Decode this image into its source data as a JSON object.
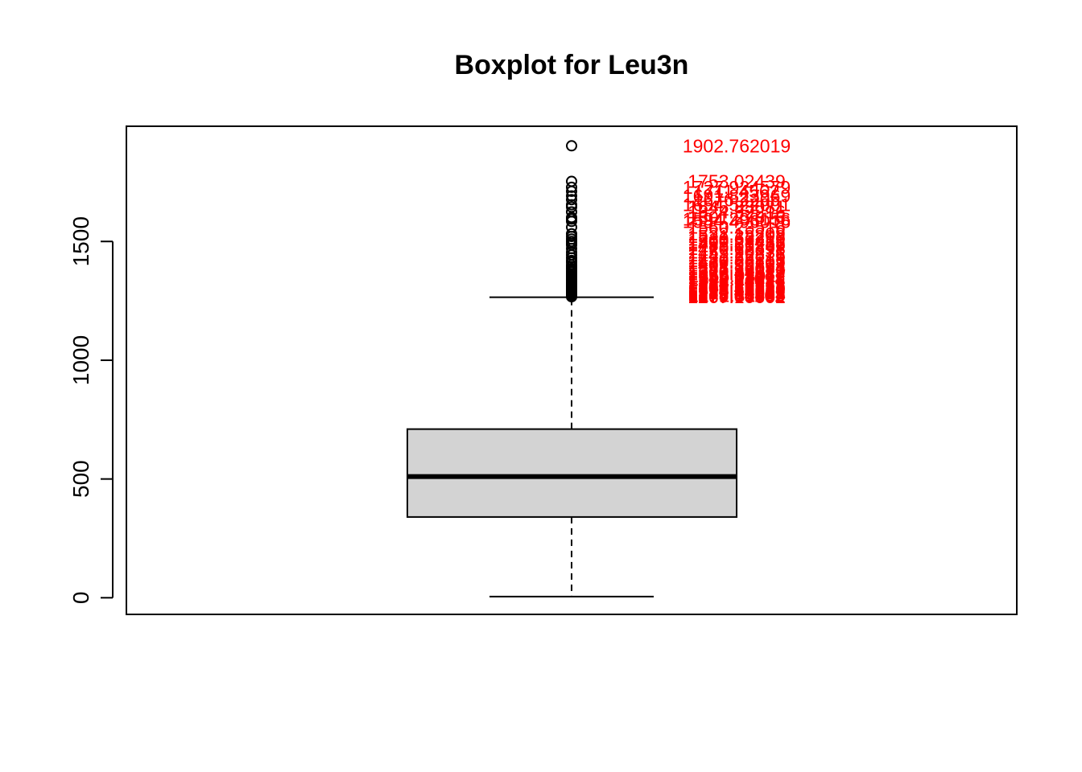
{
  "chart_data": {
    "type": "boxplot",
    "title": "Boxplot for Leu3n",
    "xlabel": "",
    "ylabel": "",
    "ylim": [
      -70,
      1985
    ],
    "yticks": [
      0,
      500,
      1000,
      1500
    ],
    "ytick_labels": [
      "0",
      "500",
      "1000",
      "1500"
    ],
    "box": {
      "min": 5,
      "q1": 340,
      "median": 510,
      "q3": 710,
      "upper_whisker": 1265,
      "fill": "#d3d3d3"
    },
    "outliers": [
      1902.762019,
      1753.02439,
      1727.924579,
      1711.0,
      1691.823969,
      1676.0,
      1654.522001,
      1645.0,
      1624.5,
      1601.0,
      1594.298156,
      1584.496016,
      1560.0,
      1532.15,
      1521.0,
      1510.0,
      1500.0,
      1492.0,
      1485.0,
      1470.0,
      1455.0,
      1443.0,
      1431.0,
      1420.0,
      1412.0,
      1401.0,
      1393.0,
      1385.0,
      1377.0,
      1370.0,
      1363.0,
      1356.0,
      1349.0,
      1342.0,
      1336.0,
      1330.0,
      1324.0,
      1318.0,
      1313.0,
      1308.0,
      1303.0,
      1298.0,
      1294.0,
      1290.0,
      1286.0,
      1282.0,
      1278.0,
      1275.0,
      1272.0,
      1269.0,
      1267.0
    ],
    "outlier_labels": [
      "1902.762019",
      "1753.02439",
      "1727.924579",
      "1711.4562",
      "1691.823969",
      "1676.2205",
      "1654.522001",
      "1645.33081",
      "1624.52216",
      "1601.27816",
      "1594.298156",
      "1584.496016",
      "1560.23516",
      "1532.15209",
      "1521.33298",
      "1510.66219",
      "1500.28431",
      "1492.31258",
      "1485.66239",
      "1470.12398",
      "1455.90231",
      "1443.22876",
      "1431.53219",
      "1420.88713",
      "1412.22109",
      "1401.99821",
      "1393.28874",
      "1385.10093",
      "1377.98122",
      "1370.44219",
      "1363.31087",
      "1356.98011",
      "1349.62271",
      "1342.11098",
      "1336.84421",
      "1330.10072",
      "1324.99821",
      "1318.77563",
      "1313.20918",
      "1308.66123",
      "1303.41987",
      "1298.72213",
      "1294.10029",
      "1290.44562",
      "1286.39921",
      "1282.60083",
      "1278.12944",
      "1275.84403",
      "1272.31102",
      "1269.00862",
      "1267.10002"
    ],
    "label_color": "#ff0000",
    "grid": false,
    "legend": "none"
  }
}
